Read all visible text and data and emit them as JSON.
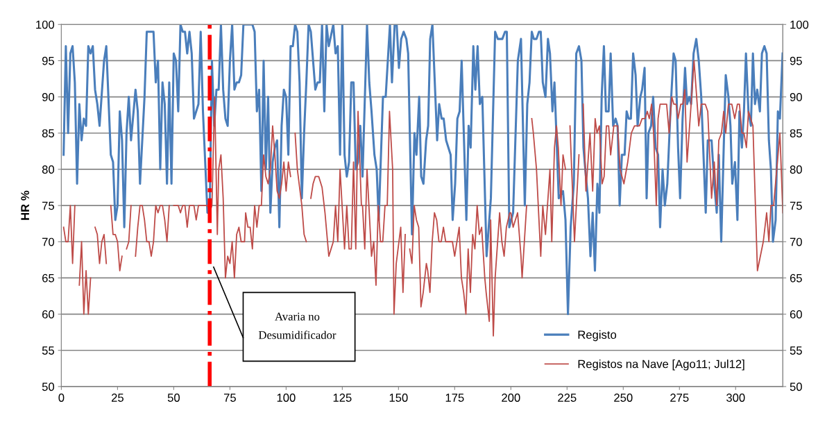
{
  "chart_data": {
    "type": "line",
    "ylabel": "HR %",
    "xlim": [
      0,
      321
    ],
    "xticks": [
      0,
      25,
      50,
      75,
      100,
      125,
      150,
      175,
      200,
      225,
      250,
      275,
      300
    ],
    "ylim": [
      50,
      100
    ],
    "yticks": [
      50,
      55,
      60,
      65,
      70,
      75,
      80,
      85,
      90,
      95,
      100
    ],
    "y2lim": [
      50,
      100
    ],
    "y2ticks": [
      50,
      55,
      60,
      65,
      70,
      75,
      80,
      85,
      90,
      95,
      100
    ],
    "grid": "y",
    "legend": "bottom right",
    "marker": "none",
    "line_style": "solid",
    "series": [
      {
        "name": "Registo",
        "color": "#4a7ebb",
        "x": [
          1,
          2,
          3,
          4,
          5,
          6,
          7,
          8,
          9,
          10,
          11,
          12,
          13,
          14,
          15,
          16,
          17,
          19,
          20,
          22,
          23,
          24,
          25,
          26,
          27,
          28,
          29,
          30,
          31,
          33,
          34,
          35,
          37,
          38,
          41,
          42,
          43,
          44,
          45,
          46,
          47,
          48,
          49,
          50,
          51,
          52,
          53,
          54,
          55,
          56,
          57,
          58,
          59,
          61,
          62,
          63,
          65,
          66,
          67,
          68,
          69,
          70,
          71,
          72,
          73,
          74,
          75,
          76,
          77,
          78,
          79,
          80,
          81,
          85,
          86,
          87,
          88,
          89,
          90,
          91,
          92,
          93,
          94,
          95,
          96,
          97,
          98,
          99,
          100,
          101,
          102,
          103,
          104,
          105,
          106,
          107,
          108,
          109,
          110,
          111,
          112,
          113,
          114,
          115,
          116,
          117,
          118,
          119,
          121,
          122,
          123,
          124,
          125,
          126,
          127,
          128,
          129,
          130,
          131,
          132,
          133,
          134,
          136,
          137,
          138,
          139.3,
          140.3,
          141.2,
          143.1,
          144.3,
          146.2,
          147.1,
          148.3,
          149.2,
          150.2,
          151.2,
          152.3,
          153.5,
          154.3,
          156,
          157.1,
          158,
          159.2,
          160.1,
          161.1,
          162.3,
          163.2,
          164.1,
          165.1,
          167.2,
          168.1,
          169.2,
          170.1,
          171.2,
          173.2,
          174.1,
          175.2,
          176.2,
          177.2,
          178.1,
          180.2,
          181.2,
          182.1,
          183.3,
          184.2,
          185.2,
          186.2,
          187.3,
          189.2,
          191.1,
          193,
          194.2,
          196.2,
          197.4,
          198.2,
          199.3,
          201,
          203.1,
          204.5,
          206.2,
          207.3,
          208.3,
          209.3,
          210.2,
          211.4,
          212.5,
          213.3,
          214.2,
          215.4,
          216.5,
          217.4,
          218.5,
          219.4,
          221.3,
          223.2,
          224.3,
          225.4,
          226.6,
          228,
          229.1,
          230.3,
          231.4,
          232.3,
          233.1,
          234.3,
          235.4,
          236.4,
          237.4,
          238.5,
          239.4,
          240.4,
          241.4,
          242.3,
          243.5,
          244.4,
          245.5,
          246.6,
          247.5,
          248.4,
          249.4,
          250.6,
          251.5,
          252.4,
          253.4,
          254.4,
          255.5,
          256.4,
          257.6,
          258.4,
          259.5,
          260.4,
          261.2,
          262.4,
          263.3,
          264.4,
          265.5,
          266.4,
          267.5,
          268.5,
          269.6,
          271,
          272.4,
          273.3,
          274.4,
          275.3,
          276.4,
          277.5,
          278.4,
          279.4,
          280.2,
          281.3,
          282.5,
          283.6,
          284.7,
          286.7,
          287.6,
          289.3,
          290.5,
          291.6,
          292.5,
          293.6,
          294.7,
          295.6,
          296.8,
          297.7,
          298.5,
          299.7,
          300.8,
          301.7,
          302.8,
          303.7,
          304.6,
          305.7,
          306.8,
          307.7,
          308.6,
          309.6,
          310.8,
          311.7,
          312.8,
          313.8,
          314.8,
          315.7,
          316.6,
          317.8,
          318.8,
          319.7,
          320.9
        ],
        "values": [
          82,
          97,
          85,
          96,
          97,
          92,
          78,
          89,
          84,
          87,
          86,
          97,
          96,
          97,
          91,
          89,
          86,
          95,
          97,
          82,
          81,
          73,
          75,
          88,
          84,
          72,
          85,
          90,
          84,
          91,
          88,
          78,
          90,
          99,
          99,
          92,
          95,
          80,
          92,
          89,
          78,
          92,
          78,
          96,
          95,
          88,
          100,
          99,
          99,
          96,
          99,
          96,
          87,
          89,
          99,
          88,
          74,
          74,
          95,
          86,
          91,
          91,
          100,
          91,
          87,
          86,
          95,
          100,
          91,
          92,
          92,
          93,
          100,
          100,
          99,
          88,
          91,
          77,
          95,
          80,
          90,
          74,
          81,
          83,
          84,
          72,
          86,
          91,
          90,
          82,
          97,
          97,
          100,
          99,
          92,
          76,
          85,
          92,
          100,
          99,
          95,
          91,
          92,
          92,
          100,
          88,
          100,
          97,
          100,
          96,
          97,
          82,
          100,
          82,
          79,
          81,
          92,
          92,
          80,
          81,
          86,
          79,
          100,
          92,
          88,
          82,
          80,
          73,
          90,
          90,
          100,
          92,
          100,
          100,
          94,
          98,
          99,
          98,
          96,
          71,
          85,
          82,
          90,
          79,
          78,
          84,
          86,
          98,
          100,
          84,
          89,
          87,
          87,
          84,
          82,
          73,
          78,
          87,
          88,
          95,
          73,
          86,
          83,
          97,
          91,
          97,
          89,
          90,
          68,
          76,
          99,
          98,
          98,
          99,
          99,
          72,
          74,
          95,
          98,
          75,
          89,
          92,
          99,
          98,
          98,
          99,
          99,
          92,
          90,
          98,
          96,
          88,
          92,
          76,
          77,
          73,
          60,
          72,
          78,
          96,
          97,
          95,
          83,
          80,
          76,
          68,
          74,
          66,
          78,
          74,
          90,
          97,
          88,
          88,
          96,
          86,
          87,
          86,
          75,
          82,
          82,
          88,
          87,
          87,
          96,
          93,
          86,
          90,
          91,
          94,
          76,
          85,
          86,
          90,
          83,
          82,
          72,
          80,
          75,
          78,
          88,
          96,
          95,
          83,
          76,
          87,
          94,
          89,
          90,
          89,
          96,
          98,
          95,
          90,
          74,
          84,
          84,
          78,
          74,
          82,
          70,
          83,
          93,
          90,
          86,
          78,
          81,
          73,
          88,
          83,
          88,
          96,
          88,
          86,
          96,
          89,
          91,
          88,
          96,
          97,
          96,
          84,
          80,
          70,
          73,
          88,
          87,
          96
        ]
      },
      {
        "name": "Registos na Nave [Ago11; Jul12]",
        "color": "#be4b48",
        "x": [
          1,
          2,
          3,
          4,
          5,
          6,
          7,
          8,
          9,
          10,
          11,
          12,
          13,
          14,
          15,
          16,
          17,
          18,
          19,
          20,
          21,
          22,
          23,
          24,
          25,
          26,
          27,
          28,
          29,
          30,
          31,
          32,
          33,
          34,
          35,
          36,
          37,
          38,
          39,
          40,
          41,
          42,
          43,
          44,
          45,
          46,
          47,
          48,
          49,
          50,
          52,
          53,
          54,
          55,
          56,
          57,
          58,
          59,
          60,
          61,
          62,
          64,
          65,
          66,
          67,
          68.2,
          69.4,
          70,
          71,
          72,
          73,
          74,
          75,
          76,
          77,
          78,
          79,
          80,
          81.5,
          82,
          83,
          84,
          85,
          86,
          87,
          88,
          89,
          90,
          91,
          92,
          93,
          94,
          95,
          96,
          97,
          98,
          99,
          100,
          101,
          102,
          103,
          104,
          105,
          107,
          108,
          109,
          110,
          111,
          112,
          113,
          114.5,
          116,
          117.3,
          119,
          121,
          122,
          123,
          124,
          126,
          127,
          128,
          129,
          130,
          131,
          132,
          133.5,
          134,
          135,
          136,
          138,
          139,
          140,
          141,
          142,
          143,
          144,
          145,
          146,
          147.4,
          148,
          149,
          151,
          152,
          153,
          154,
          155,
          156,
          157,
          158,
          159,
          160,
          161,
          162.4,
          163,
          164,
          165,
          166,
          167,
          168,
          169,
          170,
          171,
          174,
          175,
          177,
          178,
          179,
          180,
          181,
          182,
          183,
          184,
          185,
          186,
          187,
          188.4,
          189,
          190.4,
          191,
          192.2,
          193,
          195,
          196,
          197,
          198,
          199.5,
          200,
          201,
          203,
          204.5,
          205,
          206,
          207,
          208,
          209.3,
          210,
          211.4,
          212.5,
          213.3,
          214.2,
          215.4,
          217.4,
          218.2,
          219.4,
          220.3,
          221.1,
          222.3,
          223.2,
          224.3,
          225.3,
          226.3,
          228.3,
          230.3,
          231.3,
          232.2,
          233.4,
          235.2,
          236.4,
          237.5,
          238.3,
          239.4,
          240.6,
          241.5,
          242.5,
          243.5,
          244.4,
          245.8,
          247.5,
          248.6,
          250.3,
          252,
          253.6,
          255,
          257.2,
          258.4,
          259.7,
          260.7,
          261.6,
          262.6,
          263.5,
          264.7,
          265.5,
          266.4,
          269.3,
          270.4,
          271.6,
          272.5,
          273.5,
          274.4,
          275.6,
          276.5,
          277.4,
          278.4,
          280.2,
          281.5,
          283.6,
          284.7,
          286.5,
          287.6,
          289.3,
          290.5,
          291.6,
          292.5,
          293.7,
          294.7,
          295.6,
          296.8,
          298.3,
          299.6,
          300.8,
          301.7,
          302.8,
          303.7,
          304.8,
          305.7,
          307.7,
          309.7,
          312.3,
          313.8,
          314.8,
          315.7,
          316.9,
          319.7,
          321
        ],
        "values": [
          72,
          70,
          70,
          75,
          67,
          75,
          null,
          64,
          70,
          60,
          66,
          60,
          65,
          null,
          72,
          71,
          67,
          70,
          71,
          67,
          null,
          75,
          71,
          71,
          70,
          66,
          68,
          null,
          69,
          70,
          75,
          null,
          68,
          72,
          75,
          75,
          73,
          70,
          70,
          68,
          70,
          75,
          74,
          75,
          75,
          73,
          70,
          75,
          null,
          75,
          75,
          74,
          75,
          75,
          72,
          75,
          75,
          75,
          73,
          75,
          75,
          75,
          75,
          74,
          75,
          90,
          71,
          80,
          82,
          76,
          65,
          68,
          67,
          70,
          65,
          71,
          72,
          70,
          70,
          74,
          72,
          72,
          69,
          75,
          72,
          75,
          75,
          82,
          79,
          78,
          80,
          86,
          82,
          77,
          76,
          78,
          81,
          77,
          81,
          79,
          null,
          85,
          80,
          75,
          71,
          70,
          null,
          76,
          78,
          79,
          79,
          77.5,
          74,
          68,
          70,
          75,
          70,
          80,
          69,
          75,
          69,
          69,
          81,
          69,
          88,
          75,
          75,
          69,
          80,
          68,
          70,
          64,
          75,
          70,
          70,
          75,
          75,
          88,
          80,
          60,
          67,
          72,
          63,
          71,
          null,
          69,
          67,
          75,
          73,
          72,
          61,
          63,
          67,
          66,
          63,
          70,
          74,
          73,
          70,
          70,
          72,
          70,
          70,
          68,
          72,
          65,
          63,
          60,
          69,
          63,
          71,
          69,
          75,
          71,
          72,
          65,
          63,
          59,
          73,
          57,
          65,
          74,
          70,
          68,
          72,
          74,
          74,
          72,
          74,
          68,
          65,
          70,
          75,
          null,
          87,
          85,
          80,
          73,
          68,
          75,
          71,
          80,
          70,
          83,
          86,
          83,
          75,
          82,
          80,
          null,
          86,
          70,
          82,
          null,
          89,
          77,
          85,
          77,
          87,
          85,
          86,
          78,
          79,
          86,
          86,
          82,
          86,
          86,
          80,
          78,
          81,
          85,
          86,
          86,
          87,
          87,
          88,
          87,
          89,
          85,
          75,
          87,
          89,
          89,
          85,
          90,
          89,
          89,
          87,
          89,
          89,
          91,
          81,
          89,
          95,
          86,
          89,
          89,
          88,
          76,
          81,
          75,
          84,
          85,
          88,
          85,
          89,
          89,
          87,
          89,
          89,
          85,
          85,
          83,
          88,
          86,
          66,
          70,
          74,
          70,
          75,
          75,
          85,
          74
        ]
      }
    ],
    "ref_lines": [
      {
        "axis": "x",
        "value": 66,
        "color": "#ff0000",
        "line_style": "dashdot"
      }
    ],
    "annotations": [
      "Avaria no\nDesumidificador"
    ]
  }
}
